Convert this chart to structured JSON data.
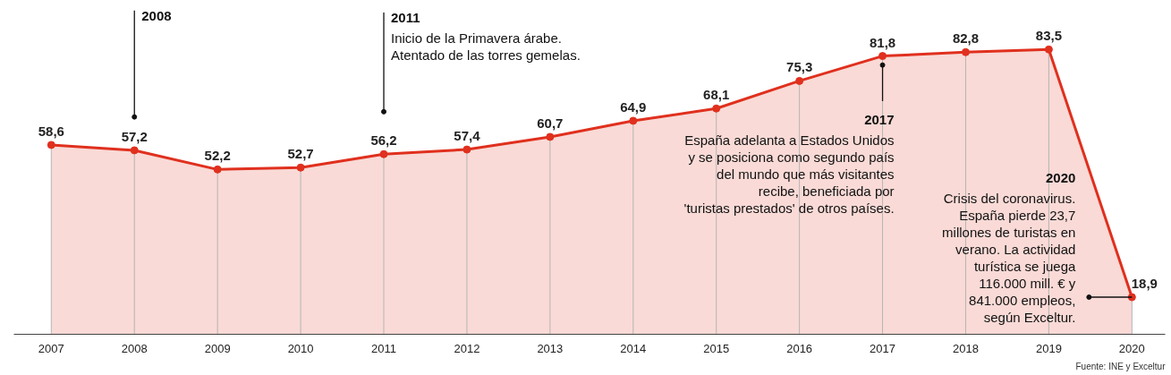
{
  "chart_data": {
    "type": "area",
    "categories": [
      "2007",
      "2008",
      "2009",
      "2010",
      "2011",
      "2012",
      "2013",
      "2014",
      "2015",
      "2016",
      "2017",
      "2018",
      "2019",
      "2020"
    ],
    "values": [
      58.6,
      57.2,
      52.2,
      52.7,
      56.2,
      57.4,
      60.7,
      64.9,
      68.1,
      75.3,
      81.8,
      82.8,
      83.5,
      18.9
    ],
    "value_labels": [
      "58,6",
      "57,2",
      "52,2",
      "52,7",
      "56,2",
      "57,4",
      "60,7",
      "64,9",
      "68,1",
      "75,3",
      "81,8",
      "82,8",
      "83,5",
      "18,9"
    ],
    "color": "#e0301e",
    "grid": "x",
    "marker": "circle",
    "tick_labels": "x",
    "annotations": [
      "2008",
      "2011\nInicio de la Primavera árabe.\nAtentado de las torres gemelas.",
      "2017\nEspaña adelanta a Estados Unidos\ny se posiciona como segundo país\ndel mundo que más visitantes\nrecibe, beneficiada por\n'turistas prestados' de otros países.",
      "2020\nCrisis del coronavirus.\nEspaña pierde 23,7\nmillones de turistas en\nverano. La actividad\nturística se juega\n116.000 mill. € y\n841.000 empleos,\nsegún Exceltur.",
      "Fuente: INE y Exceltur"
    ]
  }
}
